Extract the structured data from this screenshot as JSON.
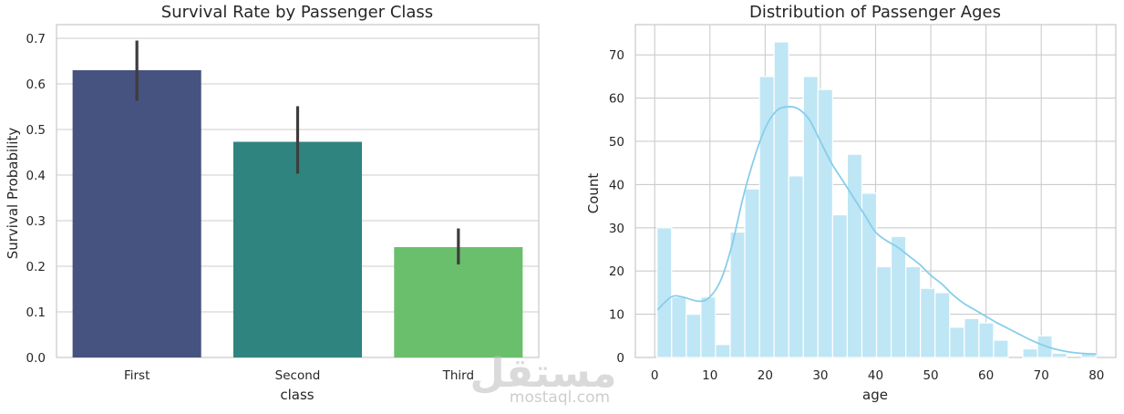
{
  "chart_data": [
    {
      "type": "bar",
      "title": "Survival Rate by Passenger Class",
      "xlabel": "class",
      "ylabel": "Survival Probability",
      "categories": [
        "First",
        "Second",
        "Third"
      ],
      "values": [
        0.63,
        0.473,
        0.242
      ],
      "error_low": [
        0.563,
        0.403,
        0.204
      ],
      "error_high": [
        0.695,
        0.551,
        0.283
      ],
      "colors": [
        "#46527f",
        "#2f8480",
        "#6abf6c"
      ],
      "ylim": [
        0,
        0.73
      ],
      "yticks": [
        "0.0",
        "0.1",
        "0.2",
        "0.3",
        "0.4",
        "0.5",
        "0.6",
        "0.7"
      ],
      "ytick_values": [
        0,
        0.1,
        0.2,
        0.3,
        0.4,
        0.5,
        0.6,
        0.7
      ],
      "grid": true
    },
    {
      "type": "bar",
      "subtype": "histogram-with-kde",
      "title": "Distribution of Passenger Ages",
      "xlabel": "age",
      "ylabel": "Count",
      "bin_edges": [
        0.42,
        3.07,
        5.72,
        8.37,
        11.02,
        13.67,
        16.32,
        18.97,
        21.62,
        24.27,
        26.92,
        29.57,
        32.22,
        34.87,
        37.52,
        40.17,
        42.82,
        45.47,
        48.12,
        50.77,
        53.42,
        56.07,
        58.72,
        61.37,
        64.02,
        66.67,
        69.32,
        71.97,
        74.62,
        77.27,
        79.92
      ],
      "counts": [
        30,
        14,
        10,
        14,
        3,
        29,
        39,
        65,
        73,
        42,
        65,
        62,
        33,
        47,
        38,
        21,
        28,
        21,
        16,
        15,
        7,
        9,
        8,
        4,
        0,
        2,
        5,
        1,
        0,
        1
      ],
      "kde_x": [
        0.5,
        3,
        5,
        8,
        10,
        12,
        14,
        16,
        18,
        20,
        22,
        24,
        26,
        28,
        30,
        32,
        34,
        36,
        38,
        40,
        42,
        44,
        46,
        48,
        50,
        52,
        54,
        56,
        58,
        60,
        62,
        64,
        66,
        68,
        70,
        72,
        74,
        76,
        78,
        80
      ],
      "kde_y": [
        11,
        14,
        14,
        13,
        14,
        18,
        26,
        37,
        46,
        53,
        57,
        58,
        57.5,
        55,
        50,
        45,
        41,
        37,
        33,
        29,
        27,
        25.5,
        23.5,
        21.5,
        19,
        17,
        14.5,
        12.5,
        11,
        9.5,
        8,
        6.7,
        5.4,
        4.1,
        3,
        2.1,
        1.5,
        1.1,
        0.9,
        0.8
      ],
      "bar_color": "#bfe6f5",
      "kde_color": "#87ceeb",
      "xlim": [
        -3.5,
        83.5
      ],
      "ylim": [
        0,
        77
      ],
      "xticks": [
        "0",
        "10",
        "20",
        "30",
        "40",
        "50",
        "60",
        "70",
        "80"
      ],
      "xtick_values": [
        0,
        10,
        20,
        30,
        40,
        50,
        60,
        70,
        80
      ],
      "yticks": [
        "0",
        "10",
        "20",
        "30",
        "40",
        "50",
        "60",
        "70"
      ],
      "ytick_values": [
        0,
        10,
        20,
        30,
        40,
        50,
        60,
        70
      ],
      "grid": true
    }
  ],
  "watermark": {
    "main": "مستقل",
    "sub": "mostaql.com"
  }
}
